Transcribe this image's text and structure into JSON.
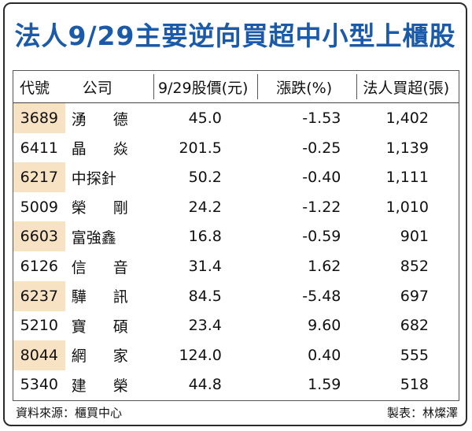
{
  "title": "法人9/29主要逆向買超中小型上櫃股",
  "headers": {
    "code": "代號",
    "company": "公司",
    "price": "9/29股價(元)",
    "change": "漲跌(%)",
    "net_buy": "法人買超(張)"
  },
  "rows": [
    {
      "code": "3689",
      "company": "湧 德",
      "price": "45.0",
      "change": "-1.53",
      "net_buy": "1,402"
    },
    {
      "code": "6411",
      "company": "晶 焱",
      "price": "201.5",
      "change": "-0.25",
      "net_buy": "1,139"
    },
    {
      "code": "6217",
      "company": "中探針",
      "price": "50.2",
      "change": "-0.40",
      "net_buy": "1,111"
    },
    {
      "code": "5009",
      "company": "榮 剛",
      "price": "24.2",
      "change": "-1.22",
      "net_buy": "1,010"
    },
    {
      "code": "6603",
      "company": "富強鑫",
      "price": "16.8",
      "change": "-0.59",
      "net_buy": "901"
    },
    {
      "code": "6126",
      "company": "信 音",
      "price": "31.4",
      "change": "1.62",
      "net_buy": "852"
    },
    {
      "code": "6237",
      "company": "驊 訊",
      "price": "84.5",
      "change": "-5.48",
      "net_buy": "697"
    },
    {
      "code": "5210",
      "company": "寶 碩",
      "price": "23.4",
      "change": "9.60",
      "net_buy": "682"
    },
    {
      "code": "8044",
      "company": "網 家",
      "price": "124.0",
      "change": "0.40",
      "net_buy": "555"
    },
    {
      "code": "5340",
      "company": "建 榮",
      "price": "44.8",
      "change": "1.59",
      "net_buy": "518"
    }
  ],
  "footer": {
    "source": "資料來源：櫃買中心",
    "maker": "製表：林燦澤"
  },
  "colors": {
    "title": "#1a5aa8",
    "highlight": "#f7e2c3",
    "border": "#2b2b2b"
  }
}
